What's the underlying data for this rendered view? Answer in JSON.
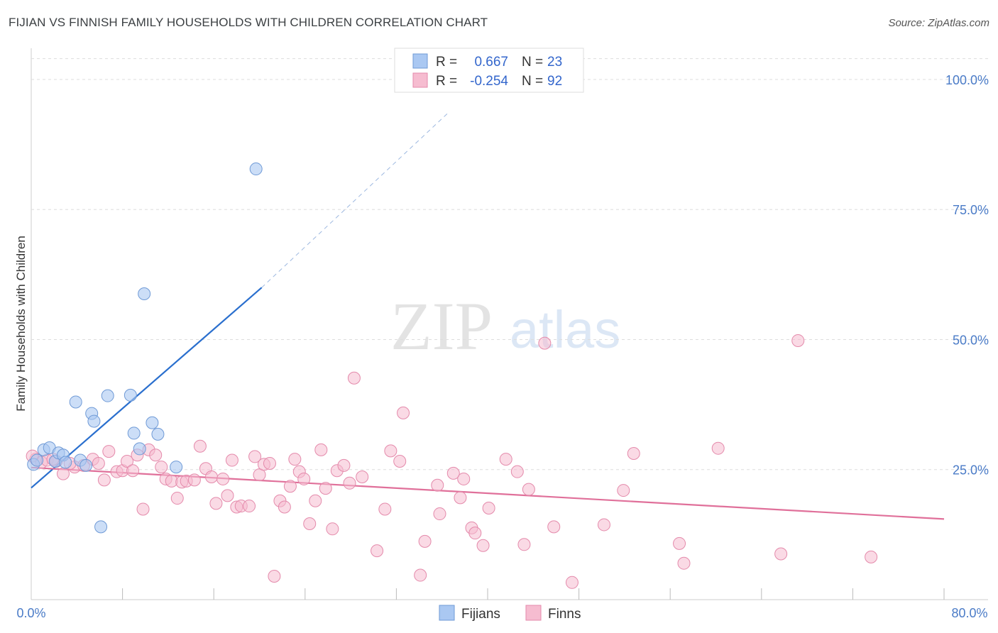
{
  "title": "FIJIAN VS FINNISH FAMILY HOUSEHOLDS WITH CHILDREN CORRELATION CHART",
  "source": "Source: ZipAtlas.com",
  "watermark": {
    "zip": "ZIP",
    "atlas": "atlas"
  },
  "colors": {
    "fijians_fill": "#aac8f2",
    "fijians_stroke": "#6f9ad6",
    "fijians_line": "#2a6fce",
    "finns_fill": "#f6bcd0",
    "finns_stroke": "#e48aab",
    "finns_line": "#e0709a",
    "grid": "#dddddd",
    "tick_label": "#4a7bc7"
  },
  "legend": {
    "rows": [
      {
        "r_label": "R =",
        "r_value": "0.667",
        "n_label": "N =",
        "n_value": "23"
      },
      {
        "r_label": "R =",
        "r_value": "-0.254",
        "n_label": "N =",
        "n_value": "92"
      }
    ]
  },
  "bottom_legend": [
    "Fijians",
    "Finns"
  ],
  "chart_data": {
    "type": "scatter",
    "title": "FIJIAN VS FINNISH FAMILY HOUSEHOLDS WITH CHILDREN CORRELATION CHART",
    "xlabel": "",
    "ylabel": "Family Households with Children",
    "xlim": [
      0,
      80
    ],
    "ylim": [
      0,
      106
    ],
    "x_tick_labels": [
      "0.0%",
      "80.0%"
    ],
    "y_ticks": [
      25,
      50,
      75,
      100
    ],
    "y_tick_labels": [
      "25.0%",
      "50.0%",
      "75.0%",
      "100.0%"
    ],
    "grid": true,
    "series": [
      {
        "name": "Fijians",
        "r": 0.667,
        "n": 23,
        "trend": {
          "x0": 0,
          "y0": 21.5,
          "x1": 20.2,
          "y1": 60.0,
          "dashed_to_x": 36.5,
          "dashed_to_y": 93.5
        },
        "points": [
          [
            0.2,
            26.0
          ],
          [
            0.5,
            26.8
          ],
          [
            1.1,
            28.8
          ],
          [
            1.6,
            29.2
          ],
          [
            2.1,
            26.6
          ],
          [
            2.4,
            28.2
          ],
          [
            2.8,
            27.8
          ],
          [
            3.0,
            26.4
          ],
          [
            3.9,
            38.0
          ],
          [
            4.3,
            26.8
          ],
          [
            4.8,
            25.8
          ],
          [
            5.3,
            35.8
          ],
          [
            5.5,
            34.3
          ],
          [
            6.1,
            14.0
          ],
          [
            6.7,
            39.2
          ],
          [
            8.7,
            39.3
          ],
          [
            9.0,
            32.0
          ],
          [
            9.5,
            29.0
          ],
          [
            9.9,
            58.8
          ],
          [
            10.6,
            34.0
          ],
          [
            11.1,
            31.8
          ],
          [
            12.7,
            25.5
          ],
          [
            19.7,
            82.8
          ]
        ]
      },
      {
        "name": "Finns",
        "r": -0.254,
        "n": 92,
        "trend": {
          "x0": 0,
          "y0": 25.4,
          "x1": 80,
          "y1": 15.5
        },
        "points": [
          [
            0.4,
            27.0
          ],
          [
            0.9,
            26.4
          ],
          [
            1.4,
            26.8
          ],
          [
            2.2,
            26.6
          ],
          [
            2.8,
            24.2
          ],
          [
            3.8,
            25.5
          ],
          [
            4.6,
            25.8
          ],
          [
            5.4,
            27.0
          ],
          [
            5.9,
            26.2
          ],
          [
            6.4,
            23.0
          ],
          [
            6.8,
            28.5
          ],
          [
            7.5,
            24.6
          ],
          [
            8.0,
            24.8
          ],
          [
            8.4,
            26.6
          ],
          [
            8.9,
            24.8
          ],
          [
            9.3,
            27.8
          ],
          [
            9.8,
            17.4
          ],
          [
            10.3,
            28.8
          ],
          [
            10.9,
            27.8
          ],
          [
            11.4,
            25.5
          ],
          [
            11.8,
            23.2
          ],
          [
            12.3,
            22.8
          ],
          [
            12.8,
            19.5
          ],
          [
            13.2,
            22.6
          ],
          [
            13.6,
            22.8
          ],
          [
            14.3,
            23.0
          ],
          [
            14.8,
            29.5
          ],
          [
            15.3,
            25.2
          ],
          [
            15.8,
            23.6
          ],
          [
            16.2,
            18.5
          ],
          [
            16.8,
            23.2
          ],
          [
            17.2,
            20.0
          ],
          [
            17.6,
            26.8
          ],
          [
            18.0,
            17.8
          ],
          [
            18.4,
            18.0
          ],
          [
            19.1,
            18.0
          ],
          [
            19.6,
            27.5
          ],
          [
            20.0,
            24.0
          ],
          [
            20.4,
            26.0
          ],
          [
            20.9,
            26.2
          ],
          [
            21.3,
            4.5
          ],
          [
            21.8,
            19.0
          ],
          [
            22.2,
            17.8
          ],
          [
            22.7,
            21.8
          ],
          [
            23.1,
            27.0
          ],
          [
            23.5,
            24.6
          ],
          [
            23.9,
            23.2
          ],
          [
            24.4,
            14.6
          ],
          [
            24.9,
            19.0
          ],
          [
            25.4,
            28.8
          ],
          [
            25.8,
            21.4
          ],
          [
            26.4,
            13.6
          ],
          [
            26.8,
            24.8
          ],
          [
            27.4,
            25.8
          ],
          [
            27.9,
            22.4
          ],
          [
            28.3,
            42.6
          ],
          [
            29.0,
            23.6
          ],
          [
            30.3,
            9.4
          ],
          [
            31.0,
            17.4
          ],
          [
            31.5,
            28.6
          ],
          [
            32.3,
            26.6
          ],
          [
            32.6,
            35.9
          ],
          [
            34.1,
            4.7
          ],
          [
            34.5,
            11.2
          ],
          [
            35.6,
            22.0
          ],
          [
            35.8,
            16.5
          ],
          [
            37.0,
            24.3
          ],
          [
            37.6,
            19.6
          ],
          [
            37.9,
            23.2
          ],
          [
            38.6,
            13.8
          ],
          [
            38.9,
            12.8
          ],
          [
            39.6,
            10.4
          ],
          [
            40.1,
            17.6
          ],
          [
            41.6,
            27.0
          ],
          [
            42.6,
            24.6
          ],
          [
            43.2,
            10.6
          ],
          [
            43.6,
            21.2
          ],
          [
            45.0,
            49.3
          ],
          [
            45.8,
            14.0
          ],
          [
            47.4,
            3.3
          ],
          [
            50.2,
            14.4
          ],
          [
            51.9,
            21.0
          ],
          [
            52.8,
            28.1
          ],
          [
            56.8,
            10.8
          ],
          [
            57.2,
            7.0
          ],
          [
            60.2,
            29.1
          ],
          [
            65.7,
            8.8
          ],
          [
            67.2,
            49.8
          ],
          [
            73.6,
            8.2
          ],
          [
            0.1,
            27.6
          ],
          [
            1.9,
            27.0
          ],
          [
            3.4,
            26.2
          ]
        ]
      }
    ]
  }
}
